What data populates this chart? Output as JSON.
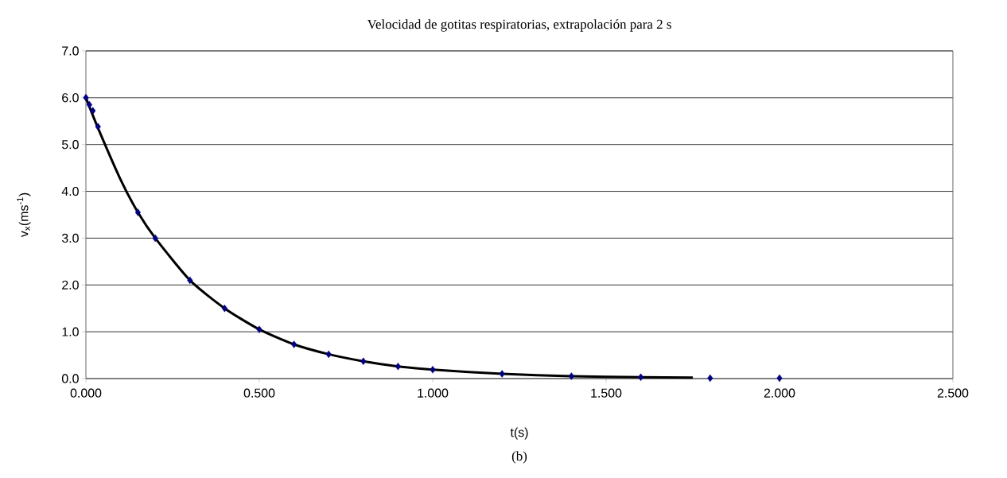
{
  "chart_data": {
    "type": "scatter",
    "title": "Velocidad de gotitas respiratorias, extrapolación para 2 s",
    "xlabel": "t(s)",
    "ylabel": "v$_{x}$(ms$^{-1}$)",
    "annotations": [
      "(b)"
    ],
    "xlim": [
      0,
      2.5
    ],
    "ylim": [
      0,
      7
    ],
    "xticks": [
      {
        "value": 0,
        "label": "0.000"
      },
      {
        "value": 0.5,
        "label": "0.500"
      },
      {
        "value": 1,
        "label": "1.000"
      },
      {
        "value": 1.5,
        "label": "1.500"
      },
      {
        "value": 2,
        "label": "2.000"
      },
      {
        "value": 2.5,
        "label": "2.500"
      }
    ],
    "yticks": [
      {
        "value": 0,
        "label": "0.0"
      },
      {
        "value": 1,
        "label": "1.0"
      },
      {
        "value": 2,
        "label": "2.0"
      },
      {
        "value": 3,
        "label": "3.0"
      },
      {
        "value": 4,
        "label": "4.0"
      },
      {
        "value": 5,
        "label": "5.0"
      },
      {
        "value": 6,
        "label": "6.0"
      },
      {
        "value": 7,
        "label": "7.0"
      }
    ],
    "grid": "y",
    "marker": "diamond",
    "series": [
      {
        "type": "line",
        "color": "#000000",
        "marker": "none",
        "x": [
          0,
          0.035,
          0.1,
          0.15,
          0.2,
          0.3,
          0.4,
          0.5,
          0.6,
          0.7,
          0.8,
          0.9,
          1.0,
          1.2,
          1.4,
          1.6,
          1.75
        ],
        "values": [
          6.0,
          5.35,
          4.25,
          3.55,
          3.0,
          2.1,
          1.5,
          1.05,
          0.73,
          0.52,
          0.37,
          0.26,
          0.19,
          0.1,
          0.05,
          0.03,
          0.02
        ]
      },
      {
        "color": "#000080",
        "x": [
          0,
          0.01,
          0.02,
          0.035,
          0.15,
          0.2,
          0.3,
          0.4,
          0.5,
          0.6,
          0.7,
          0.8,
          0.9,
          1.0,
          1.2,
          1.4,
          1.6,
          1.8,
          2.0
        ],
        "values": [
          6.0,
          5.85,
          5.72,
          5.38,
          3.55,
          3.0,
          2.1,
          1.5,
          1.05,
          0.73,
          0.52,
          0.37,
          0.26,
          0.19,
          0.1,
          0.05,
          0.03,
          0.01,
          0.01
        ]
      }
    ]
  }
}
